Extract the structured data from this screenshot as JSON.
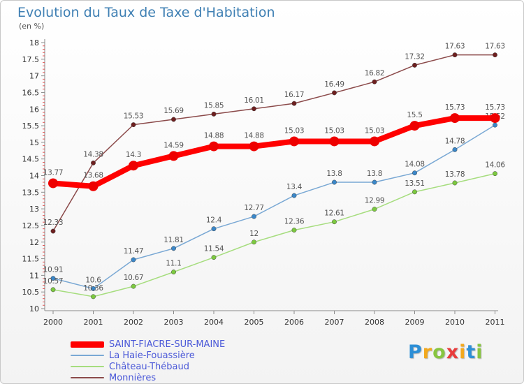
{
  "header": {
    "title": "Evolution du Taux de Taxe d'Habitation",
    "unit": "(en %)"
  },
  "brand": {
    "letters": [
      "P",
      "r",
      "o",
      "x",
      "i",
      "t",
      "i"
    ],
    "colors": [
      "#2d8fd6",
      "#f2a81d",
      "#88c540",
      "#e83c3c",
      "#f2a81d",
      "#2d8fd6",
      "#88c540"
    ]
  },
  "chart_data": {
    "type": "line",
    "title": "Evolution du Taux de Taxe d'Habitation",
    "ylabel": "(en %)",
    "xlabel": "",
    "grid": false,
    "ylim": [
      10,
      18
    ],
    "yticks": [
      "10",
      "10.5",
      "11",
      "11.5",
      "12",
      "12.5",
      "13",
      "13.5",
      "14",
      "14.5",
      "15",
      "15.5",
      "16",
      "16.5",
      "17",
      "17.5",
      "18"
    ],
    "categories": [
      "2000",
      "2001",
      "2002",
      "2003",
      "2004",
      "2005",
      "2006",
      "2007",
      "2008",
      "2009",
      "2010",
      "2011"
    ],
    "series": [
      {
        "name": "Monnières",
        "color": "#8b4a4a",
        "marker_color": "#6e1f1f",
        "values": [
          12.33,
          14.38,
          15.53,
          15.69,
          15.85,
          16.01,
          16.17,
          16.49,
          16.82,
          17.32,
          17.63,
          17.63
        ],
        "labels": [
          "12.33",
          "14.38",
          "15.53",
          "15.69",
          "15.85",
          "16.01",
          "16.17",
          "16.49",
          "16.82",
          "17.32",
          "17.63",
          "17.63"
        ]
      },
      {
        "name": "La Haie-Fouassière",
        "color": "#79a8d4",
        "marker_color": "#3a87c9",
        "values": [
          10.91,
          10.6,
          11.47,
          11.81,
          12.4,
          12.77,
          13.4,
          13.8,
          13.8,
          14.08,
          14.78,
          15.52
        ],
        "labels": [
          "10.91",
          "10.6",
          "11.47",
          "11.81",
          "12.4",
          "12.77",
          "13.4",
          "13.8",
          "13.8",
          "14.08",
          "14.78",
          "15.52"
        ]
      },
      {
        "name": "Château-Thébaud",
        "color": "#a6dd7e",
        "marker_color": "#7cc93f",
        "values": [
          10.57,
          10.36,
          10.67,
          11.1,
          11.54,
          12,
          12.36,
          12.61,
          12.99,
          13.51,
          13.78,
          14.06
        ],
        "labels": [
          "10.57",
          "10.36",
          "10.67",
          "11.1",
          "11.54",
          "12",
          "12.36",
          "12.61",
          "12.99",
          "13.51",
          "13.78",
          "14.06"
        ]
      },
      {
        "name": "SAINT-FIACRE-SUR-MAINE",
        "color": "#ff0000",
        "marker_color": "#ee0000",
        "values": [
          13.77,
          13.68,
          14.3,
          14.59,
          14.88,
          14.88,
          15.03,
          15.03,
          15.03,
          15.5,
          15.73,
          15.73
        ],
        "labels": [
          "13.77",
          "13.68",
          "14.3",
          "14.59",
          "14.88",
          "14.88",
          "15.03",
          "15.03",
          "15.03",
          "15.5",
          "15.73",
          "15.73"
        ]
      }
    ],
    "legend": [
      "SAINT-FIACRE-SUR-MAINE",
      "La Haie-Fouassière",
      "Château-Thébaud",
      "Monnières"
    ]
  }
}
